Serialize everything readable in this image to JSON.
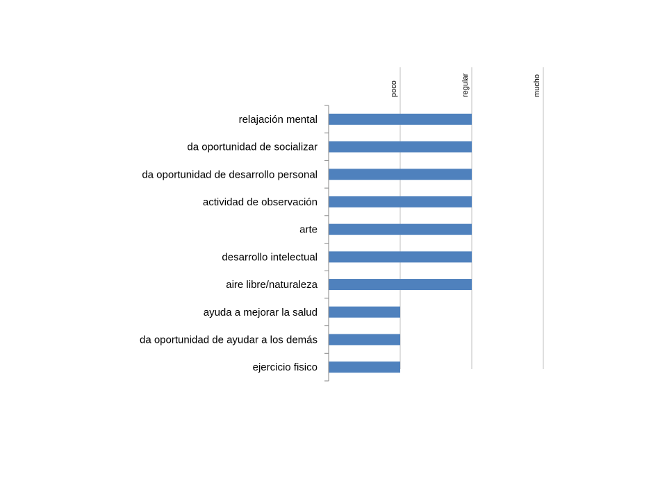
{
  "chart_data": {
    "type": "bar",
    "orientation": "horizontal",
    "categories": [
      "relajación mental",
      "da oportunidad de socializar",
      "da oportunidad de desarrollo personal",
      "actividad de observación",
      "arte",
      "desarrollo intelectual",
      "aire libre/naturaleza",
      "ayuda a mejorar la salud",
      "da oportunidad de ayudar a los demás",
      "ejercicio fisico"
    ],
    "values": [
      2,
      2,
      2,
      2,
      2,
      2,
      2,
      1,
      1,
      1
    ],
    "value_tick_labels": [
      "poco",
      "regular",
      "mucho"
    ],
    "value_tick_values": [
      1,
      2,
      3
    ],
    "xlim": [
      0,
      3
    ],
    "title": "",
    "xlabel": "",
    "ylabel": "",
    "grid": true,
    "legend": "none",
    "bar_color": "#4F81BD",
    "grid_color": "#BFBFBF",
    "axis_color": "#868686",
    "text_color": "#000000"
  }
}
